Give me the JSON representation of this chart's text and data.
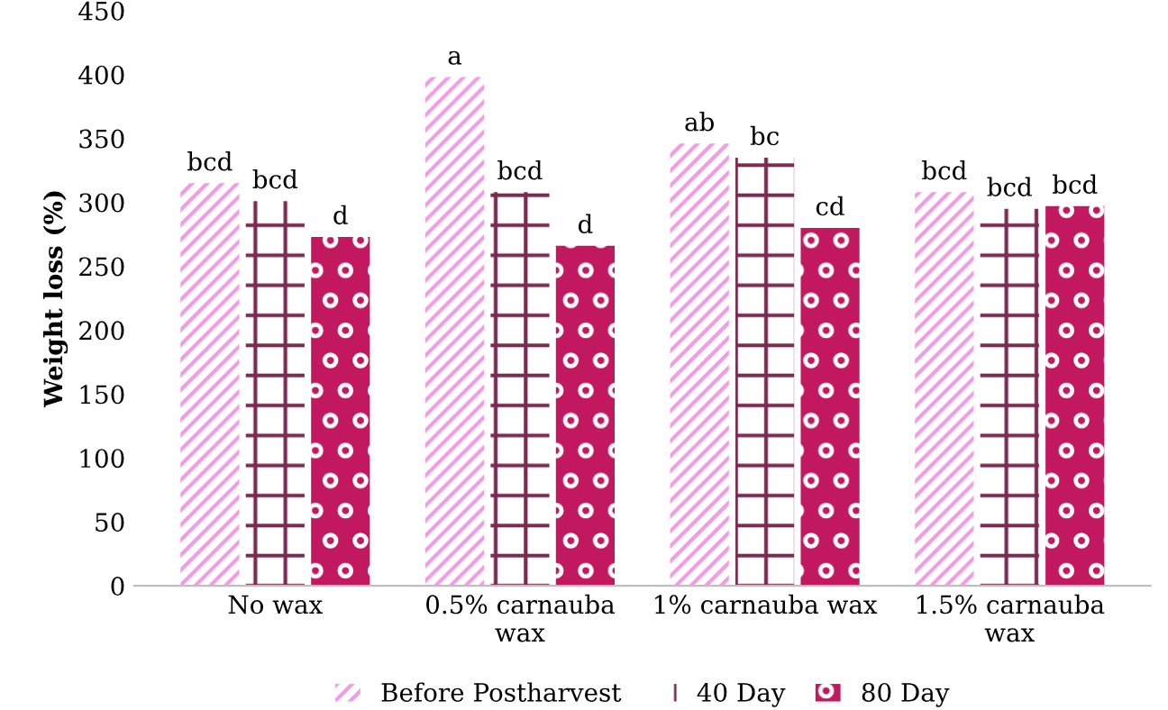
{
  "chart_data": {
    "type": "bar",
    "ylabel": "Weight loss (%)",
    "categories": [
      "No wax",
      "0.5% carnauba\nwax",
      "1% carnauba wax",
      "1.5% carnauba\nwax"
    ],
    "series": [
      {
        "name": "Before Postharvest",
        "color": "#f29be3",
        "values": [
          315,
          398,
          346,
          308
        ],
        "value_labels": [
          "bcd",
          "a",
          "ab",
          "bcd"
        ]
      },
      {
        "name": "40 Day",
        "color": "#7a2a50",
        "values": [
          301,
          308,
          335,
          295
        ],
        "value_labels": [
          "bcd",
          "bcd",
          "bc",
          "bcd"
        ]
      },
      {
        "name": "80 Day",
        "color": "#c2185f",
        "values": [
          273,
          266,
          280,
          297
        ],
        "value_labels": [
          "d",
          "d",
          "cd",
          "bcd"
        ]
      }
    ],
    "ylim": [
      0,
      450
    ],
    "yticks": [
      0,
      50,
      100,
      150,
      200,
      250,
      300,
      350,
      400,
      450
    ],
    "grid": false,
    "legend": "bottom"
  }
}
